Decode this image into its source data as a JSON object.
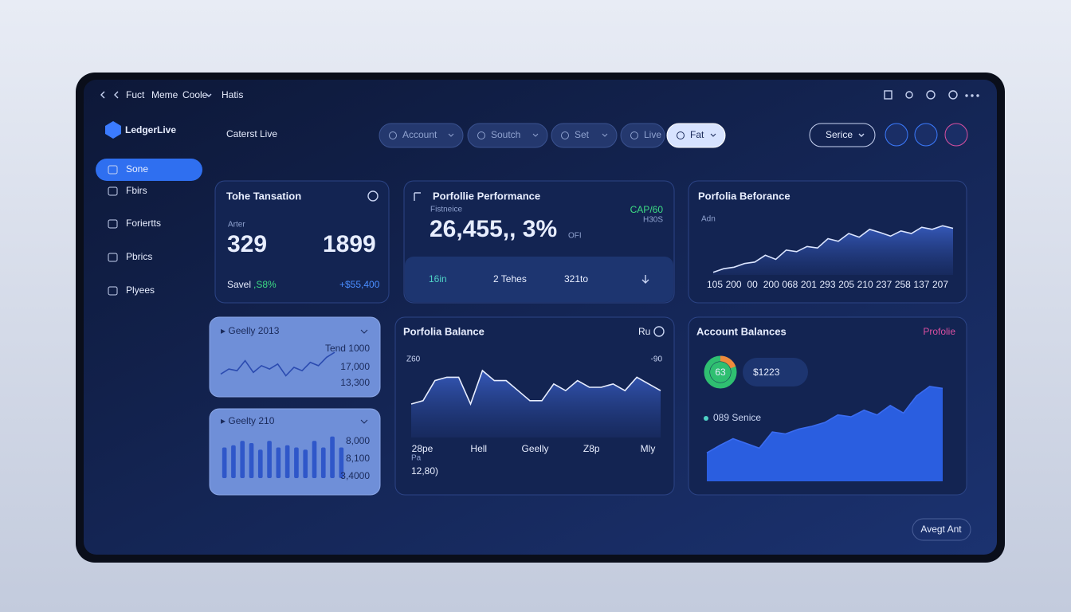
{
  "topbar": {
    "links": [
      "Fuct",
      "Meme",
      "Coole",
      "Hatis"
    ]
  },
  "brand": "LedgerLive",
  "page_title": "Caterst Live",
  "filters": [
    "Account",
    "Soutch",
    "Set",
    "Live",
    "Fat"
  ],
  "service_button": "Serice",
  "sidebar": [
    "Sone",
    "Fbirs",
    "Foriertts",
    "Pbrics",
    "Plyees"
  ],
  "cards": [
    {
      "title": "Tohe Tansation",
      "label": "Arter",
      "stats": [
        "329",
        "1899"
      ],
      "footer": [
        "Savel",
        ",S8%",
        "+$55,400"
      ]
    },
    {
      "title": "Porfollie Performance",
      "label": "Fistneice",
      "value": "26,455,, 3%",
      "unit": "OFI",
      "badge": [
        "CAP/60",
        "H30S"
      ],
      "row": [
        "16in",
        "2 Tehes",
        "321to"
      ]
    },
    {
      "title": "Porfolia Beforance",
      "label": "Adn",
      "chart": {
        "type": "line",
        "ylim": [
          0,
          100
        ],
        "values": [
          5,
          12,
          15,
          22,
          25,
          38,
          30,
          48,
          45,
          55,
          52,
          70,
          65,
          80,
          73,
          88,
          82,
          75,
          85,
          80,
          92,
          88,
          95,
          90
        ],
        "x_labels": [
          "105",
          "200",
          "00",
          "200",
          "068",
          "201",
          "293",
          "205",
          "210",
          "237",
          "258",
          "137",
          "207"
        ]
      }
    },
    {
      "title": "Geelly 2013",
      "labels": [
        "Tend 1000",
        "17,000",
        "13,300"
      ],
      "chart": {
        "type": "line",
        "ylim": [
          0,
          100
        ],
        "values": [
          30,
          45,
          40,
          70,
          35,
          55,
          45,
          60,
          25,
          50,
          40,
          65,
          55,
          80,
          95
        ]
      }
    },
    {
      "title": "Geelty 210",
      "labels": [
        "8,000",
        "8,100",
        "3,4000"
      ],
      "chart": {
        "type": "bar",
        "ylim": [
          0,
          100
        ],
        "values": [
          70,
          75,
          85,
          80,
          65,
          85,
          70,
          75,
          70,
          65,
          85,
          70,
          95,
          70
        ]
      }
    },
    {
      "title": "Porfolia Balance",
      "action": "Ru",
      "top_labels": [
        "Z60",
        "-90"
      ],
      "label": "Pa",
      "value": "12,80)",
      "chart": {
        "type": "area",
        "ylim": [
          0,
          100
        ],
        "values": [
          50,
          55,
          85,
          90,
          90,
          50,
          100,
          85,
          85,
          70,
          55,
          55,
          80,
          70,
          85,
          75,
          75,
          80,
          70,
          90,
          80,
          70
        ],
        "x_labels": [
          "28pe",
          "Hell",
          "Geelly",
          "Z8p",
          "Mly"
        ]
      }
    },
    {
      "title": "Account Balances",
      "link": "Profolie",
      "badge": "63",
      "value": "$1223",
      "legend": "089 Senice",
      "chart": {
        "type": "area",
        "ylim": [
          0,
          100
        ],
        "values": [
          30,
          38,
          45,
          40,
          35,
          52,
          50,
          55,
          58,
          62,
          70,
          68,
          75,
          70,
          80,
          72,
          90,
          100,
          98
        ]
      }
    }
  ],
  "footer_button": "Avegt Ant"
}
